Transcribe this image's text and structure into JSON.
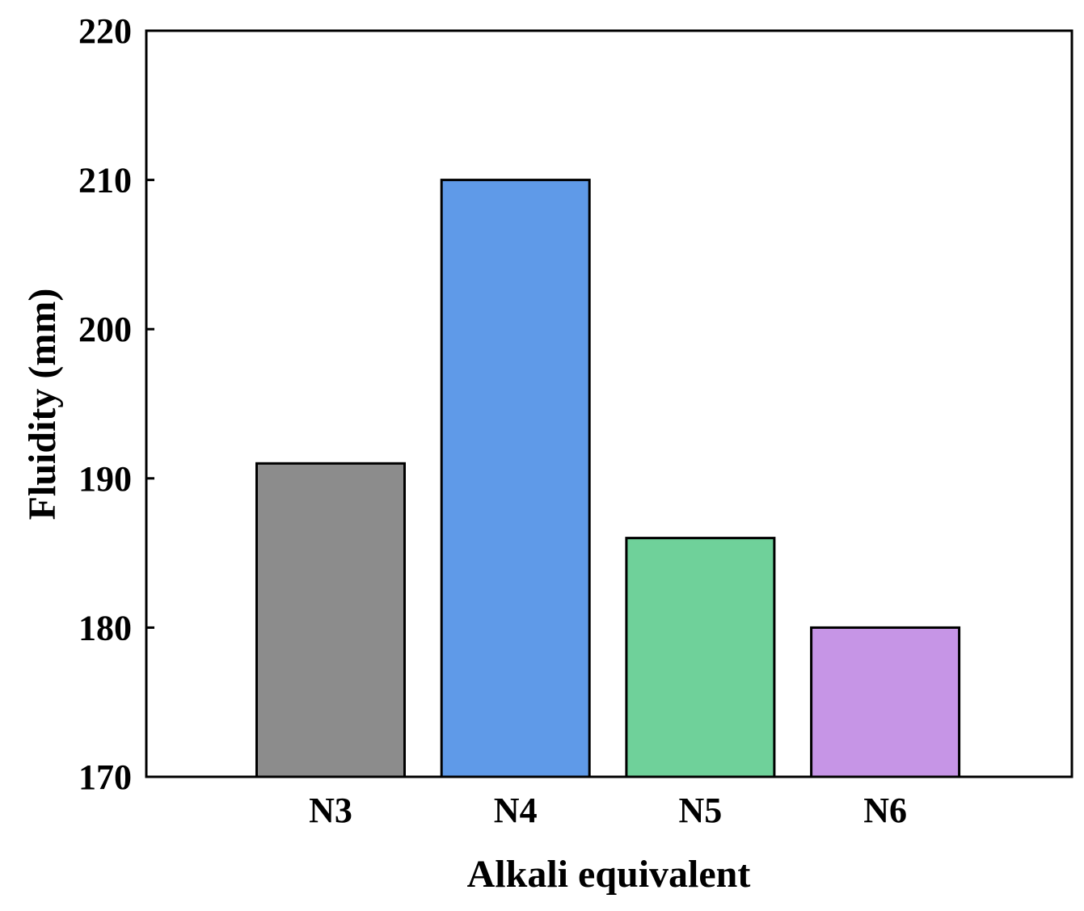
{
  "chart_data": {
    "type": "bar",
    "title": "",
    "xlabel": "Alkali equivalent",
    "ylabel": "Fluidity (mm)",
    "categories": [
      "N3",
      "N4",
      "N5",
      "N6"
    ],
    "values": [
      191,
      210,
      186,
      180
    ],
    "colors": [
      "#8c8c8c",
      "#5f9ae8",
      "#6fd19a",
      "#c695e6"
    ],
    "ylim": [
      170,
      220
    ],
    "yticks": [
      170,
      180,
      190,
      200,
      210,
      220
    ],
    "grid": false,
    "legend": "none"
  }
}
